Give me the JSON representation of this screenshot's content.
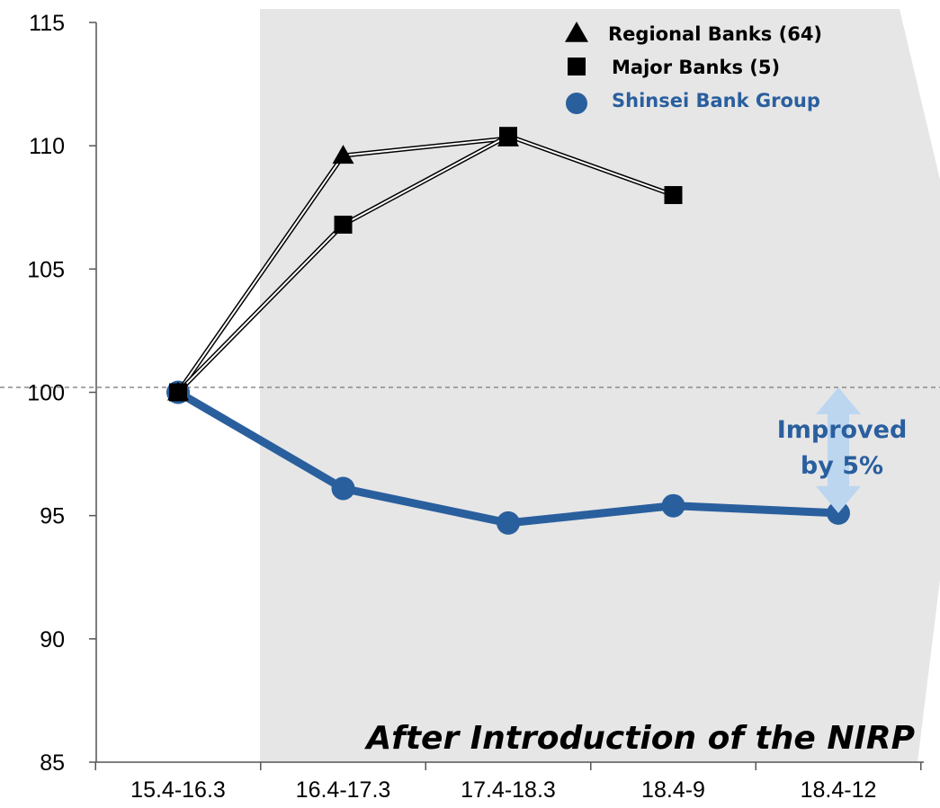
{
  "chart_data": {
    "type": "line",
    "categories": [
      "15.4-16.3",
      "16.4-17.3",
      "17.4-18.3",
      "18.4-9",
      "18.4-12"
    ],
    "ylim": [
      85,
      115
    ],
    "yticks": [
      85,
      90,
      95,
      100,
      105,
      110,
      115
    ],
    "reference_line": 100.2,
    "series": [
      {
        "name": "Regional Banks (64)",
        "marker": "triangle",
        "color": "#000000",
        "values": [
          100,
          109.6,
          110.3,
          null,
          null
        ]
      },
      {
        "name": "Major Banks (5)",
        "marker": "square",
        "color": "#000000",
        "values": [
          100,
          106.8,
          110.4,
          108.0,
          null
        ]
      },
      {
        "name": "Shinsei Bank Group",
        "marker": "circle",
        "color": "#2a5f9e",
        "values": [
          100,
          96.1,
          94.7,
          95.4,
          95.1
        ]
      }
    ],
    "legend": {
      "placement": "top-right"
    },
    "shaded_region": {
      "from_category": "16.4-17.3",
      "label": "After Introduction of the NIRP",
      "color": "#e6e6e6"
    },
    "annotation": {
      "lines": [
        "Improved",
        "by 5%"
      ],
      "color": "#2a5f9e",
      "arrow_color": "#bcd6f0",
      "from_value": 100.2,
      "to_value": 95.1,
      "category": "18.4-12"
    }
  }
}
